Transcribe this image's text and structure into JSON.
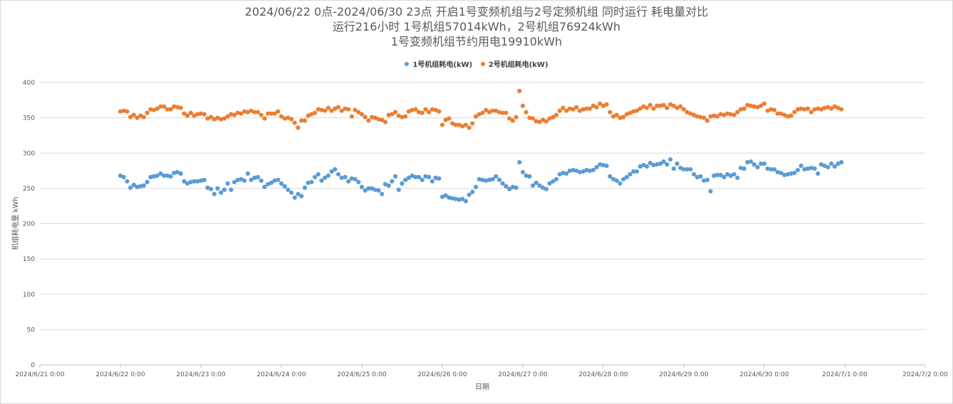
{
  "chart_data": {
    "type": "scatter",
    "title_lines": [
      "2024/06/22 0点-2024/06/30 23点  开启1号变频机组与2号定频机组  同时运行  耗电量对比",
      "运行216小时  1号机组57014kWh，2号机组76924kWh",
      "1号变频机组节约用电19910kWh"
    ],
    "xlabel": "日期",
    "ylabel": "机组耗电量 kWh",
    "ylim": [
      0,
      400
    ],
    "yticks": [
      0,
      50,
      100,
      150,
      200,
      250,
      300,
      350,
      400
    ],
    "xlim_days": [
      0,
      11
    ],
    "xticks": [
      {
        "day": 0,
        "label": "2024/6/21 0:00"
      },
      {
        "day": 1,
        "label": "2024/6/22 0:00"
      },
      {
        "day": 2,
        "label": "2024/6/23 0:00"
      },
      {
        "day": 3,
        "label": "2024/6/24 0:00"
      },
      {
        "day": 4,
        "label": "2024/6/25 0:00"
      },
      {
        "day": 5,
        "label": "2024/6/26 0:00"
      },
      {
        "day": 6,
        "label": "2024/6/27 0:00"
      },
      {
        "day": 7,
        "label": "2024/6/28 0:00"
      },
      {
        "day": 8,
        "label": "2024/6/29 0:00"
      },
      {
        "day": 9,
        "label": "2024/6/30 0:00"
      },
      {
        "day": 10,
        "label": "2024/7/1 0:00"
      },
      {
        "day": 11,
        "label": "2024/7/2 0:00"
      }
    ],
    "grid": true,
    "legend_position": "top-center",
    "x_start_day": 1,
    "x_step_hours": 1,
    "series": [
      {
        "name": "1号机组耗电(kW)",
        "color": "#5b9bd5",
        "values": [
          268,
          266,
          260,
          251,
          255,
          252,
          253,
          254,
          259,
          266,
          267,
          268,
          271,
          268,
          268,
          267,
          272,
          273,
          271,
          260,
          257,
          259,
          260,
          260,
          261,
          262,
          251,
          249,
          242,
          250,
          244,
          248,
          257,
          248,
          259,
          262,
          263,
          261,
          271,
          262,
          265,
          266,
          261,
          252,
          256,
          258,
          261,
          262,
          257,
          253,
          248,
          244,
          237,
          242,
          239,
          251,
          258,
          259,
          266,
          270,
          261,
          265,
          268,
          274,
          277,
          270,
          265,
          266,
          260,
          264,
          263,
          259,
          252,
          247,
          250,
          250,
          248,
          247,
          242,
          256,
          254,
          260,
          267,
          248,
          257,
          262,
          265,
          268,
          266,
          266,
          262,
          267,
          266,
          260,
          265,
          264,
          238,
          240,
          237,
          236,
          235,
          234,
          235,
          232,
          241,
          245,
          252,
          263,
          262,
          261,
          262,
          263,
          267,
          262,
          257,
          253,
          249,
          252,
          251,
          287,
          273,
          268,
          267,
          254,
          258,
          254,
          251,
          249,
          257,
          260,
          263,
          270,
          272,
          271,
          275,
          276,
          275,
          273,
          274,
          276,
          275,
          276,
          280,
          284,
          283,
          282,
          267,
          263,
          261,
          257,
          263,
          266,
          270,
          274,
          274,
          281,
          283,
          281,
          286,
          283,
          284,
          285,
          288,
          284,
          291,
          278,
          285,
          279,
          277,
          277,
          277,
          270,
          266,
          267,
          261,
          262,
          246,
          268,
          269,
          269,
          266,
          270,
          268,
          270,
          265,
          279,
          278,
          287,
          288,
          284,
          280,
          285,
          285,
          278,
          277,
          277,
          273,
          272,
          269,
          270,
          271,
          272,
          276,
          282,
          277,
          278,
          279,
          278,
          271,
          284,
          282,
          280,
          285,
          281,
          285,
          287
        ]
      },
      {
        "name": "2号机组耗电(kW)",
        "color": "#ed7d31",
        "values": [
          359,
          360,
          359,
          351,
          354,
          350,
          353,
          351,
          357,
          362,
          361,
          363,
          366,
          366,
          362,
          362,
          366,
          365,
          364,
          356,
          353,
          357,
          353,
          355,
          356,
          355,
          349,
          351,
          348,
          350,
          348,
          349,
          352,
          355,
          354,
          357,
          356,
          359,
          358,
          360,
          358,
          358,
          354,
          349,
          356,
          356,
          356,
          359,
          352,
          349,
          350,
          348,
          343,
          336,
          346,
          346,
          353,
          355,
          357,
          362,
          361,
          360,
          364,
          360,
          363,
          365,
          360,
          363,
          362,
          352,
          361,
          358,
          355,
          351,
          346,
          351,
          350,
          348,
          347,
          344,
          354,
          355,
          358,
          353,
          351,
          352,
          359,
          361,
          362,
          358,
          357,
          362,
          358,
          362,
          361,
          359,
          340,
          347,
          349,
          342,
          340,
          340,
          338,
          340,
          336,
          342,
          352,
          355,
          357,
          361,
          358,
          360,
          360,
          358,
          357,
          357,
          349,
          346,
          351,
          388,
          367,
          358,
          350,
          349,
          345,
          344,
          347,
          345,
          349,
          351,
          354,
          360,
          364,
          360,
          363,
          362,
          365,
          360,
          362,
          363,
          363,
          367,
          365,
          370,
          367,
          369,
          358,
          352,
          354,
          350,
          351,
          355,
          357,
          359,
          360,
          363,
          366,
          364,
          368,
          363,
          367,
          367,
          368,
          364,
          369,
          367,
          364,
          366,
          362,
          358,
          356,
          354,
          352,
          351,
          350,
          346,
          352,
          353,
          352,
          355,
          354,
          356,
          355,
          354,
          358,
          362,
          363,
          368,
          367,
          366,
          365,
          367,
          370,
          360,
          362,
          361,
          356,
          356,
          354,
          352,
          353,
          358,
          362,
          363,
          362,
          363,
          358,
          362,
          363,
          362,
          364,
          365,
          363,
          366,
          364,
          362
        ]
      }
    ]
  }
}
